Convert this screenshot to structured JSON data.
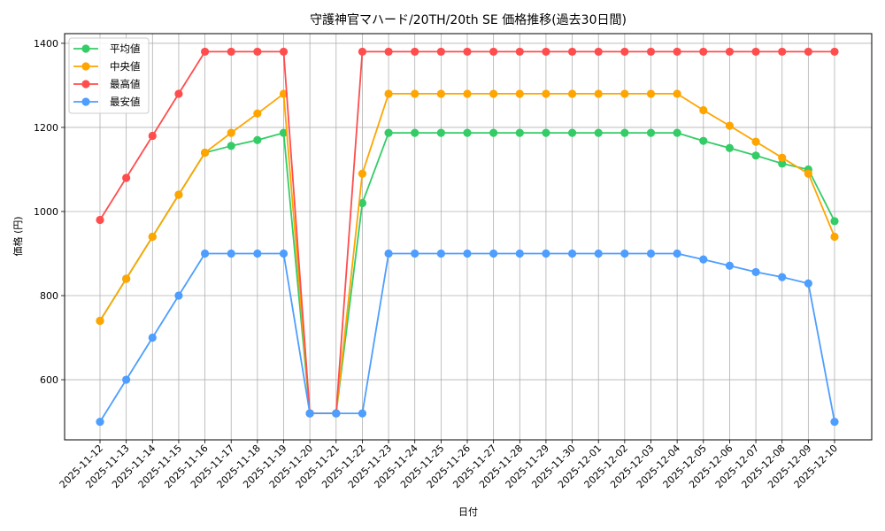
{
  "chart_data": {
    "type": "line",
    "title": "守護神官マハード/20TH/20th SE 価格推移(過去30日間)",
    "xlabel": "日付",
    "ylabel": "価格 (円)",
    "ylim": [
      457,
      1423
    ],
    "yticks": [
      600,
      800,
      1000,
      1200,
      1400
    ],
    "grid": true,
    "legend_position": "upper left",
    "x": [
      "2025-11-12",
      "2025-11-13",
      "2025-11-14",
      "2025-11-15",
      "2025-11-16",
      "2025-11-17",
      "2025-11-18",
      "2025-11-19",
      "2025-11-20",
      "2025-11-21",
      "2025-11-22",
      "2025-11-23",
      "2025-11-24",
      "2025-11-25",
      "2025-11-26",
      "2025-11-27",
      "2025-11-28",
      "2025-11-29",
      "2025-11-30",
      "2025-12-01",
      "2025-12-02",
      "2025-12-03",
      "2025-12-04",
      "2025-12-05",
      "2025-12-06",
      "2025-12-07",
      "2025-12-08",
      "2025-12-09",
      "2025-12-10"
    ],
    "series": [
      {
        "name": "平均値",
        "color": "#33cc66",
        "values": [
          740,
          840,
          940,
          1040,
          1140,
          1156,
          1170,
          1187,
          520,
          520,
          1020,
          1187,
          1187,
          1187,
          1187,
          1187,
          1187,
          1187,
          1187,
          1187,
          1187,
          1187,
          1187,
          1168,
          1151,
          1133,
          1114,
          1100,
          977
        ]
      },
      {
        "name": "中央値",
        "color": "#ffa500",
        "values": [
          740,
          840,
          940,
          1040,
          1140,
          1187,
          1233,
          1280,
          520,
          520,
          1090,
          1280,
          1280,
          1280,
          1280,
          1280,
          1280,
          1280,
          1280,
          1280,
          1280,
          1280,
          1280,
          1241,
          1204,
          1166,
          1128,
          1090,
          940
        ]
      },
      {
        "name": "最高値",
        "color": "#ff4d4d",
        "values": [
          980,
          1080,
          1180,
          1280,
          1380,
          1380,
          1380,
          1380,
          520,
          520,
          1380,
          1380,
          1380,
          1380,
          1380,
          1380,
          1380,
          1380,
          1380,
          1380,
          1380,
          1380,
          1380,
          1380,
          1380,
          1380,
          1380,
          1380,
          1380
        ]
      },
      {
        "name": "最安値",
        "color": "#4d9eff",
        "values": [
          500,
          600,
          700,
          800,
          900,
          900,
          900,
          900,
          520,
          520,
          520,
          900,
          900,
          900,
          900,
          900,
          900,
          900,
          900,
          900,
          900,
          900,
          900,
          886,
          871,
          856,
          844,
          829,
          500
        ]
      }
    ]
  }
}
